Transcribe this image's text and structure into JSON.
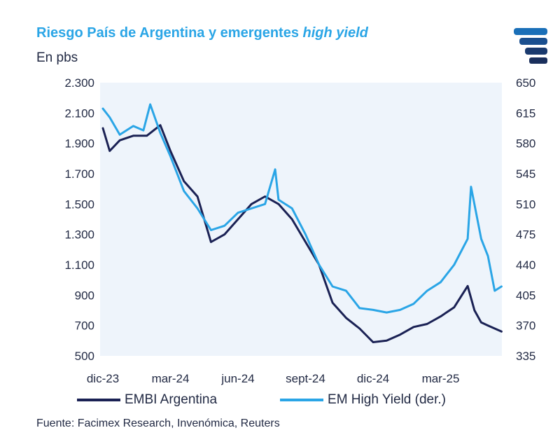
{
  "title_prefix": "Riesgo País de Argentina y emergentes ",
  "title_italic": "high yield",
  "subtitle": "En pbs",
  "source": "Fuente: Facimex Research, Invenómica, Reuters",
  "colors": {
    "embi": "#1a2154",
    "em": "#2aa5e6",
    "plot_bg": "#eef4fb",
    "text": "#222a44"
  },
  "chart_data": {
    "type": "line",
    "title": "Riesgo País de Argentina y emergentes high yield",
    "ylabel": "En pbs",
    "x_ticks": [
      "dic-23",
      "mar-24",
      "jun-24",
      "sept-24",
      "dic-24",
      "mar-25"
    ],
    "y_left": {
      "lim": [
        500,
        2300
      ],
      "ticks": [
        500,
        700,
        900,
        1100,
        1300,
        1500,
        1700,
        1900,
        2100,
        2300
      ],
      "tick_labels": [
        "500",
        "700",
        "900",
        "1.100",
        "1.300",
        "1.500",
        "1.700",
        "1.900",
        "2.100",
        "2.300"
      ]
    },
    "y_right": {
      "lim": [
        335,
        650
      ],
      "ticks": [
        335,
        370,
        405,
        440,
        475,
        510,
        545,
        580,
        615,
        650
      ],
      "tick_labels": [
        "335",
        "370",
        "405",
        "440",
        "475",
        "510",
        "545",
        "580",
        "615",
        "650"
      ]
    },
    "series": [
      {
        "name": "EMBI Argentina",
        "axis": "left",
        "x": [
          0,
          0.1,
          0.25,
          0.45,
          0.65,
          0.85,
          1.0,
          1.2,
          1.4,
          1.6,
          1.8,
          2.0,
          2.2,
          2.4,
          2.6,
          2.8,
          3.0,
          3.2,
          3.4,
          3.6,
          3.8,
          4.0,
          4.2,
          4.4,
          4.6,
          4.8,
          5.0,
          5.2,
          5.4,
          5.5,
          5.6,
          5.7,
          5.9
        ],
        "values": [
          2000,
          1850,
          1920,
          1950,
          1950,
          2020,
          1850,
          1650,
          1550,
          1250,
          1300,
          1400,
          1500,
          1550,
          1500,
          1400,
          1250,
          1100,
          850,
          750,
          680,
          590,
          600,
          640,
          690,
          710,
          760,
          820,
          960,
          800,
          720,
          700,
          660
        ]
      },
      {
        "name": "EM High Yield (der.)",
        "axis": "right",
        "x": [
          0,
          0.1,
          0.25,
          0.45,
          0.6,
          0.7,
          0.85,
          1.0,
          1.2,
          1.4,
          1.6,
          1.8,
          2.0,
          2.2,
          2.4,
          2.55,
          2.6,
          2.8,
          3.0,
          3.2,
          3.4,
          3.6,
          3.8,
          4.0,
          4.2,
          4.4,
          4.6,
          4.8,
          5.0,
          5.2,
          5.4,
          5.45,
          5.6,
          5.7,
          5.8,
          5.9
        ],
        "values": [
          620,
          610,
          590,
          600,
          595,
          625,
          592,
          565,
          525,
          505,
          480,
          485,
          500,
          505,
          510,
          550,
          515,
          505,
          475,
          440,
          415,
          410,
          390,
          388,
          385,
          388,
          395,
          410,
          420,
          440,
          470,
          530,
          470,
          450,
          410,
          415
        ]
      }
    ]
  }
}
